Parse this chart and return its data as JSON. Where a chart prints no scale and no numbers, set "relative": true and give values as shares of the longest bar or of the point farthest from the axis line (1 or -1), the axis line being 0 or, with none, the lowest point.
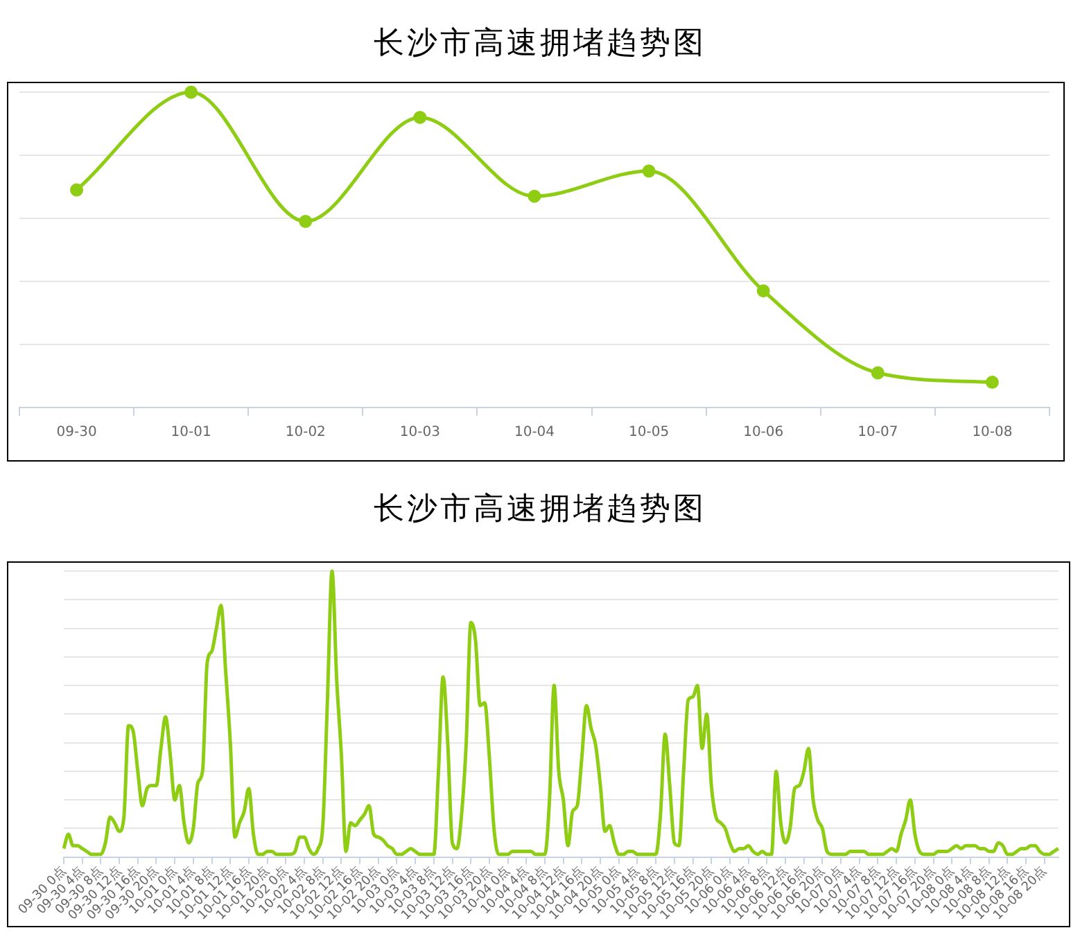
{
  "chart_data": [
    {
      "type": "line",
      "title": "长沙市高速拥堵趋势图",
      "relative": true,
      "grid": "y",
      "legend": false,
      "marker": "circle",
      "line_style": "solid",
      "categories": [
        "09-30",
        "10-01",
        "10-02",
        "10-03",
        "10-04",
        "10-05",
        "10-06",
        "10-07",
        "10-08"
      ],
      "series": [
        {
          "color": "#8fcc14",
          "values": [
            0.69,
            1,
            0.59,
            0.92,
            0.67,
            0.75,
            0.37,
            0.11,
            0.08
          ]
        }
      ]
    },
    {
      "type": "line",
      "title": "长沙市高速拥堵趋势图",
      "relative": true,
      "grid": "y",
      "legend": false,
      "marker": "none",
      "line_style": "solid",
      "categories": [
        "09-30 0点",
        null,
        null,
        null,
        "09-30 4点",
        null,
        null,
        null,
        "09-30 8点",
        null,
        null,
        null,
        "09-30 12点",
        null,
        null,
        null,
        "09-30 16点",
        null,
        null,
        null,
        "09-30 20点",
        null,
        null,
        null,
        "10-01 0点",
        null,
        null,
        null,
        "10-01 4点",
        null,
        null,
        null,
        "10-01 8点",
        null,
        null,
        null,
        "10-01 12点",
        null,
        null,
        null,
        "10-01 16点",
        null,
        null,
        null,
        "10-01 20点",
        null,
        null,
        null,
        "10-02 0点",
        null,
        null,
        null,
        "10-02 4点",
        null,
        null,
        null,
        "10-02 8点",
        null,
        null,
        null,
        "10-02 12点",
        null,
        null,
        null,
        "10-02 16点",
        null,
        null,
        null,
        "10-02 20点",
        null,
        null,
        null,
        "10-03 0点",
        null,
        null,
        null,
        "10-03 4点",
        null,
        null,
        null,
        "10-03 8点",
        null,
        null,
        null,
        "10-03 12点",
        null,
        null,
        null,
        "10-03 16点",
        null,
        null,
        null,
        "10-03 20点",
        null,
        null,
        null,
        "10-04 0点",
        null,
        null,
        null,
        "10-04 4点",
        null,
        null,
        null,
        "10-04 8点",
        null,
        null,
        null,
        "10-04 12点",
        null,
        null,
        null,
        "10-04 16点",
        null,
        null,
        null,
        "10-04 20点",
        null,
        null,
        null,
        "10-05 0点",
        null,
        null,
        null,
        "10-05 4点",
        null,
        null,
        null,
        "10-05 8点",
        null,
        null,
        null,
        "10-05 12点",
        null,
        null,
        null,
        "10-05 16点",
        null,
        null,
        null,
        "10-05 20点",
        null,
        null,
        null,
        "10-06 0点",
        null,
        null,
        null,
        "10-06 4点",
        null,
        null,
        null,
        "10-06 8点",
        null,
        null,
        null,
        "10-06 12点",
        null,
        null,
        null,
        "10-06 16点",
        null,
        null,
        null,
        "10-06 20点",
        null,
        null,
        null,
        "10-07 0点",
        null,
        null,
        null,
        "10-07 4点",
        null,
        null,
        null,
        "10-07 8点",
        null,
        null,
        null,
        "10-07 12点",
        null,
        null,
        null,
        "10-07 16点",
        null,
        null,
        null,
        "10-07 20点",
        null,
        null,
        null,
        "10-08 0点",
        null,
        null,
        null,
        "10-08 4点",
        null,
        null,
        null,
        "10-08 8点",
        null,
        null,
        null,
        "10-08 12点",
        null,
        null,
        null,
        "10-08 16点",
        null,
        null,
        null,
        "10-08 20点",
        null,
        null,
        null
      ],
      "series": [
        {
          "color": "#8fcc14",
          "values": [
            0.03,
            0.08,
            0.04,
            0.04,
            0.03,
            0.02,
            0.01,
            0.01,
            0.01,
            0.05,
            0.14,
            0.12,
            0.09,
            0.14,
            0.46,
            0.44,
            0.3,
            0.18,
            0.24,
            0.25,
            0.25,
            0.38,
            0.49,
            0.36,
            0.2,
            0.25,
            0.12,
            0.05,
            0.1,
            0.26,
            0.3,
            0.68,
            0.72,
            0.8,
            0.88,
            0.65,
            0.4,
            0.07,
            0.12,
            0.16,
            0.24,
            0.08,
            0.01,
            0.01,
            0.02,
            0.02,
            0.01,
            0.01,
            0.01,
            0.01,
            0.02,
            0.07,
            0.07,
            0.03,
            0.01,
            0.03,
            0.11,
            0.55,
            1,
            0.62,
            0.36,
            0.02,
            0.12,
            0.11,
            0.13,
            0.15,
            0.18,
            0.08,
            0.07,
            0.06,
            0.04,
            0.03,
            0.01,
            0.01,
            0.02,
            0.03,
            0.02,
            0.01,
            0.01,
            0.01,
            0.01,
            0.3,
            0.63,
            0.4,
            0.05,
            0.03,
            0.15,
            0.4,
            0.82,
            0.76,
            0.53,
            0.54,
            0.35,
            0.1,
            0.01,
            0.01,
            0.01,
            0.02,
            0.02,
            0.02,
            0.02,
            0.02,
            0.01,
            0.01,
            0.01,
            0.2,
            0.6,
            0.3,
            0.2,
            0.04,
            0.16,
            0.18,
            0.35,
            0.53,
            0.45,
            0.39,
            0.25,
            0.09,
            0.11,
            0.05,
            0.01,
            0.01,
            0.02,
            0.02,
            0.01,
            0.01,
            0.01,
            0.01,
            0.01,
            0.15,
            0.43,
            0.25,
            0.05,
            0.04,
            0.3,
            0.55,
            0.56,
            0.6,
            0.38,
            0.5,
            0.25,
            0.14,
            0.12,
            0.1,
            0.05,
            0.02,
            0.03,
            0.03,
            0.04,
            0.02,
            0.01,
            0.02,
            0.01,
            0.01,
            0.3,
            0.12,
            0.05,
            0.1,
            0.24,
            0.25,
            0.3,
            0.38,
            0.2,
            0.13,
            0.1,
            0.02,
            0.01,
            0.01,
            0.01,
            0.01,
            0.02,
            0.02,
            0.02,
            0.02,
            0.01,
            0.01,
            0.01,
            0.01,
            0.02,
            0.03,
            0.02,
            0.08,
            0.13,
            0.2,
            0.08,
            0.02,
            0.01,
            0.01,
            0.01,
            0.02,
            0.02,
            0.02,
            0.03,
            0.04,
            0.03,
            0.04,
            0.04,
            0.04,
            0.03,
            0.03,
            0.02,
            0.02,
            0.05,
            0.04,
            0.01,
            0.01,
            0.02,
            0.03,
            0.03,
            0.04,
            0.04,
            0.02,
            0.01,
            0.01,
            0.02,
            0.03
          ]
        }
      ]
    }
  ]
}
